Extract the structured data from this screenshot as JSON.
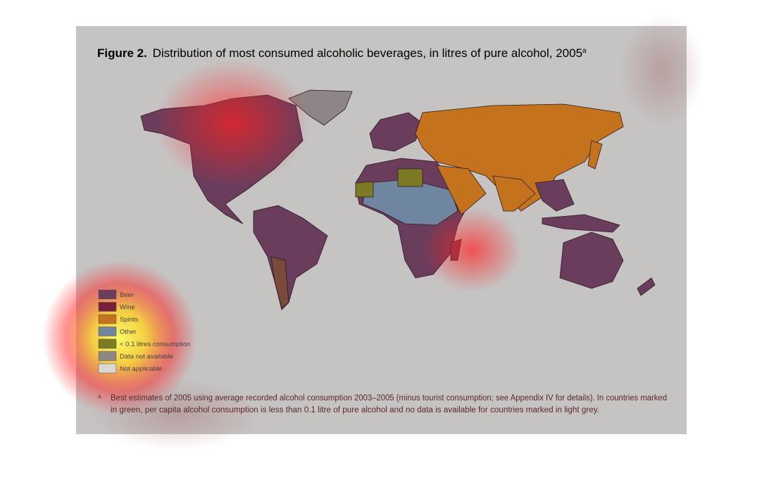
{
  "figure": {
    "label": "Figure 2.",
    "title": "Distribution of most consumed alcoholic beverages, in litres of pure alcohol, 2005",
    "title_note": "a"
  },
  "legend": [
    {
      "label": "Beer",
      "color": "#6b3d5c"
    },
    {
      "label": "Wine",
      "color": "#7a1f3a"
    },
    {
      "label": "Spirits",
      "color": "#c4731c"
    },
    {
      "label": "Other",
      "color": "#6f86a0"
    },
    {
      "label": "< 0.1 litres consumption",
      "color": "#7c7a22"
    },
    {
      "label": "Data not available",
      "color": "#8e8686"
    },
    {
      "label": "Not applicable",
      "color": "#d8d8d8"
    }
  ],
  "footnote": {
    "marker": "a",
    "lines": [
      "Best estimates of 2005 using average recorded alcohol consumption 2003–2005 (minus tourist consumption; see Appendix IV for details). In countries marked",
      "in green, per capita alcohol consumption is less than 0.1 litre of pure alcohol and no data is available for countries marked in light grey."
    ]
  }
}
